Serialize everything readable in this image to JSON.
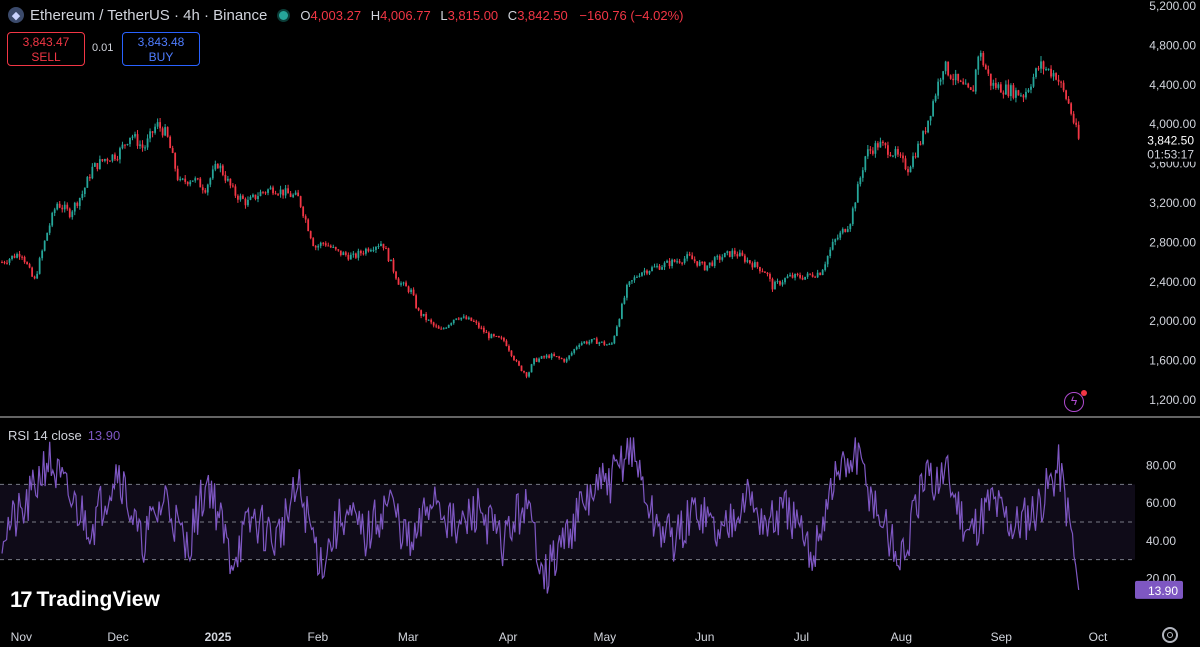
{
  "header": {
    "symbol": "Ethereum / TetherUS · 4h · Binance",
    "o_label": "O",
    "o": "4,003.27",
    "h_label": "H",
    "h": "4,006.77",
    "l_label": "L",
    "l": "3,815.00",
    "c_label": "C",
    "c": "3,842.50",
    "change": "−160.76 (−4.02%)"
  },
  "trade": {
    "sell_price": "3,843.47",
    "sell_label": "SELL",
    "spread": "0.01",
    "buy_price": "3,843.48",
    "buy_label": "BUY"
  },
  "rsi_label": {
    "name": "RSI 14 close",
    "value": "13.90"
  },
  "branding": {
    "logo_text": "TradingView",
    "logo_mark": "17"
  },
  "colors": {
    "up": "#26a69a",
    "down": "#f23645",
    "rsi": "#7e57c2",
    "price_tag": "#f23645"
  },
  "chart_data": [
    {
      "type": "candlestick",
      "title": "Ethereum / TetherUS · 4h · Binance",
      "x_ticks": [
        "Nov",
        "Dec",
        "2025",
        "Feb",
        "Mar",
        "Apr",
        "May",
        "Jun",
        "Jul",
        "Aug",
        "Sep",
        "Oct"
      ],
      "y_ticks": [
        "5,200.00",
        "4,800.00",
        "4,400.00",
        "4,000.00",
        "3,600.00",
        "3,200.00",
        "2,800.00",
        "2,400.00",
        "2,000.00",
        "1,600.00",
        "1,200.00"
      ],
      "ylim": [
        1200,
        5200
      ],
      "last_price": "3,842.50",
      "countdown": "01:53:17",
      "series": [
        {
          "name": "Ethereum / TetherUS",
          "x": [
            "Oct 26",
            "Nov 1",
            "Nov 5",
            "Nov 9",
            "Nov 12",
            "Nov 16",
            "Nov 20",
            "Nov 23",
            "Nov 27",
            "Dec 1",
            "Dec 5",
            "Dec 9",
            "Dec 13",
            "Dec 16",
            "Dec 20",
            "Dec 24",
            "Dec 28",
            "Jan 1",
            "Jan 6",
            "Jan 10",
            "Jan 14",
            "Jan 18",
            "Jan 22",
            "Jan 26",
            "Jan 31",
            "Feb 3",
            "Feb 7",
            "Feb 12",
            "Feb 17",
            "Feb 21",
            "Feb 26",
            "Mar 2",
            "Mar 4",
            "Mar 9",
            "Mar 11",
            "Mar 16",
            "Mar 21",
            "Mar 26",
            "Mar 31",
            "Apr 4",
            "Apr 7",
            "Apr 9",
            "Apr 14",
            "Apr 19",
            "Apr 23",
            "Apr 28",
            "May 3",
            "May 8",
            "May 12",
            "May 17",
            "May 22",
            "May 27",
            "Jun 1",
            "Jun 6",
            "Jun 10",
            "Jun 15",
            "Jun 20",
            "Jun 22",
            "Jun 27",
            "Jul 2",
            "Jul 7",
            "Jul 11",
            "Jul 16",
            "Jul 21",
            "Jul 25",
            "Jul 30",
            "Aug 3",
            "Aug 8",
            "Aug 11",
            "Aug 14",
            "Aug 19",
            "Aug 23",
            "Aug 25",
            "Aug 29",
            "Sep 3",
            "Sep 8",
            "Sep 13",
            "Sep 18",
            "Sep 22",
            "Sep 25"
          ],
          "close": [
            2600,
            2700,
            2400,
            2900,
            3200,
            3100,
            3300,
            3550,
            3650,
            3700,
            3900,
            3750,
            4000,
            3900,
            3400,
            3450,
            3350,
            3600,
            3300,
            3200,
            3300,
            3350,
            3300,
            3250,
            2750,
            2800,
            2700,
            2650,
            2750,
            2800,
            2400,
            2300,
            2100,
            1950,
            1900,
            2050,
            2000,
            1850,
            1800,
            1550,
            1450,
            1600,
            1650,
            1600,
            1780,
            1800,
            1750,
            2350,
            2500,
            2550,
            2600,
            2650,
            2550,
            2650,
            2700,
            2600,
            2500,
            2350,
            2450,
            2450,
            2500,
            2800,
            3000,
            3700,
            3800,
            3700,
            3550,
            3900,
            4250,
            4600,
            4400,
            4300,
            4750,
            4400,
            4350,
            4300,
            4600,
            4500,
            4200,
            3842.5
          ]
        }
      ]
    },
    {
      "type": "line",
      "title": "RSI 14 close",
      "y_ticks": [
        "80.00",
        "60.00",
        "40.00",
        "20.00"
      ],
      "ylim": [
        0,
        100
      ],
      "bands": {
        "upper": 70,
        "middle": 50,
        "lower": 30
      },
      "last_value": "13.90",
      "series": [
        {
          "name": "RSI 14 close",
          "x": [
            "Oct 26",
            "Nov 2",
            "Nov 9",
            "Nov 16",
            "Nov 23",
            "Dec 1",
            "Dec 8",
            "Dec 16",
            "Dec 22",
            "Dec 29",
            "Jan 5",
            "Jan 12",
            "Jan 19",
            "Jan 26",
            "Feb 2",
            "Feb 9",
            "Feb 16",
            "Feb 23",
            "Mar 2",
            "Mar 9",
            "Mar 16",
            "Mar 23",
            "Mar 30",
            "Apr 6",
            "Apr 13",
            "Apr 20",
            "Apr 27",
            "May 4",
            "May 9",
            "May 16",
            "May 23",
            "May 30",
            "Jun 6",
            "Jun 13",
            "Jun 20",
            "Jun 27",
            "Jul 4",
            "Jul 11",
            "Jul 18",
            "Jul 25",
            "Aug 1",
            "Aug 8",
            "Aug 15",
            "Aug 22",
            "Aug 29",
            "Sep 5",
            "Sep 12",
            "Sep 19",
            "Sep 23",
            "Sep 25"
          ],
          "values": [
            45,
            55,
            84,
            62,
            48,
            80,
            38,
            64,
            35,
            73,
            30,
            52,
            40,
            68,
            28,
            55,
            42,
            62,
            35,
            66,
            44,
            58,
            38,
            60,
            22,
            46,
            65,
            74,
            92,
            50,
            40,
            58,
            42,
            66,
            48,
            56,
            30,
            72,
            85,
            54,
            28,
            70,
            76,
            44,
            62,
            48,
            58,
            80,
            42,
            13.9
          ]
        }
      ]
    }
  ]
}
